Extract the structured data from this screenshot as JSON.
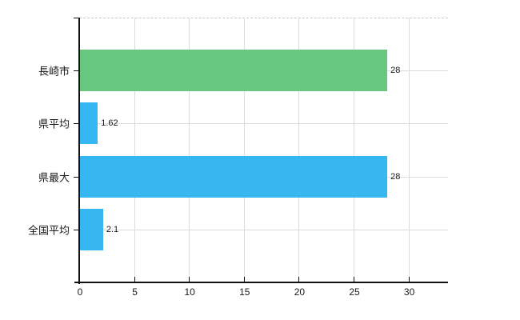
{
  "chart_data": {
    "type": "bar",
    "orientation": "horizontal",
    "title": "",
    "categories": [
      "長崎市",
      "県平均",
      "県最大",
      "全国平均"
    ],
    "values": [
      28,
      1.62,
      28,
      2.1
    ],
    "value_labels": [
      "28",
      "1.62",
      "28",
      "2.1"
    ],
    "bar_colors": [
      "#66c87e",
      "#36b7f2",
      "#36b7f2",
      "#36b7f2"
    ],
    "x_ticks": [
      0,
      5,
      10,
      15,
      20,
      25,
      30
    ],
    "x_tick_labels": [
      "0",
      "5",
      "10",
      "15",
      "20",
      "25",
      "30"
    ],
    "xlim": [
      0,
      33.6
    ],
    "xlabel": "",
    "ylabel": "",
    "grid": true,
    "legend": false,
    "style": {
      "background": "#ffffff",
      "axis_color": "#111111",
      "grid_color": "#dcdcdc",
      "top_grid_color": "#c9c9c9",
      "text_color": "#1a1a1a"
    }
  }
}
